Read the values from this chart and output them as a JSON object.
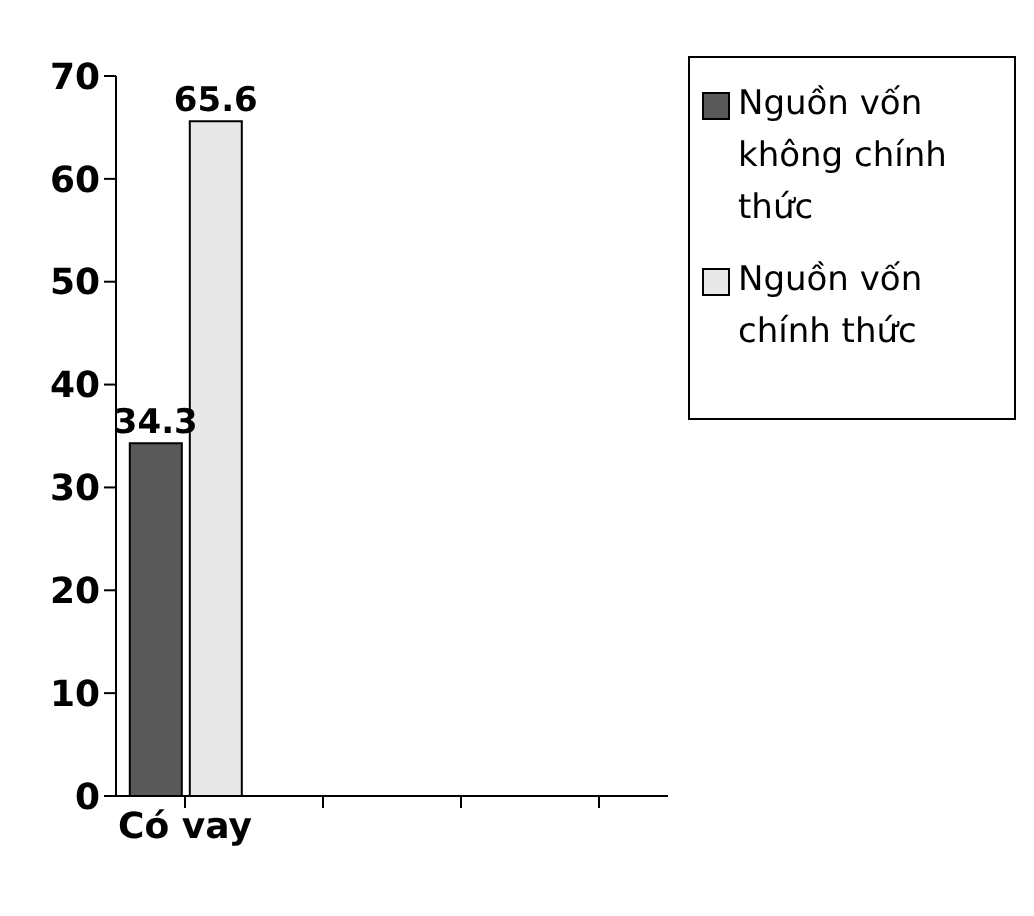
{
  "chart_data": {
    "type": "bar",
    "categories": [
      "Có vay",
      null,
      null,
      null
    ],
    "series": [
      {
        "name": "Nguồn vốn không chính thức",
        "color": "#595959",
        "values": [
          34.3,
          null,
          null,
          null
        ]
      },
      {
        "name": "Nguồn vốn chính thức",
        "color": "#e8e8e8",
        "values": [
          65.6,
          null,
          null,
          null
        ]
      }
    ],
    "ylim": [
      0,
      70
    ],
    "yticks": [
      0,
      10,
      20,
      30,
      40,
      50,
      60,
      70
    ],
    "grid": false,
    "legend": "top right",
    "data_labels": true
  }
}
